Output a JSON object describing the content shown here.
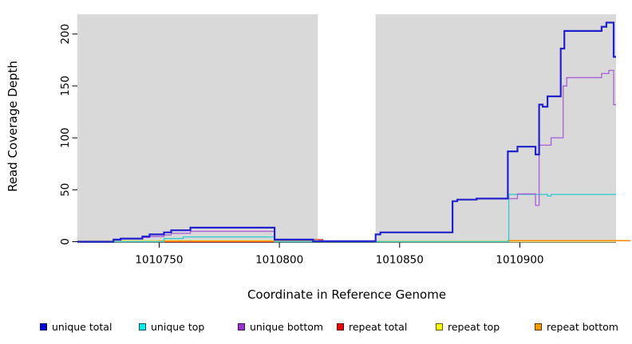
{
  "chart_data": {
    "type": "line",
    "step": true,
    "title": "",
    "xlabel": "Coordinate in Reference Genome",
    "ylabel": "Read Coverage Depth",
    "xlim": [
      1010716,
      1010940
    ],
    "ylim": [
      0,
      219
    ],
    "xticks": [
      1010750,
      1010800,
      1010850,
      1010900
    ],
    "yticks": [
      0,
      50,
      100,
      150,
      200
    ],
    "grid": false,
    "background": "#d9d9d9",
    "axis_color": "#000000",
    "masked_region": {
      "x0": 1010816,
      "x1": 1010840,
      "color": "#ffffff"
    },
    "legend_position": "bottom",
    "series": [
      {
        "name": "unique total",
        "line_color": "#2222cc",
        "width": 2.2,
        "points": [
          [
            1010716,
            0
          ],
          [
            1010731,
            2
          ],
          [
            1010734,
            3
          ],
          [
            1010743,
            5
          ],
          [
            1010746,
            7
          ],
          [
            1010752,
            9
          ],
          [
            1010755,
            11
          ],
          [
            1010763,
            13.5
          ],
          [
            1010798,
            2
          ],
          [
            1010814,
            0.5
          ],
          [
            1010840,
            7
          ],
          [
            1010842,
            9
          ],
          [
            1010872,
            39
          ],
          [
            1010874,
            40.5
          ],
          [
            1010882,
            41.5
          ],
          [
            1010895,
            87
          ],
          [
            1010899,
            91.5
          ],
          [
            1010906.5,
            84
          ],
          [
            1010908,
            132
          ],
          [
            1010909.5,
            130
          ],
          [
            1010911.5,
            140
          ],
          [
            1010917,
            186
          ],
          [
            1010918.5,
            203
          ],
          [
            1010934,
            207
          ],
          [
            1010936,
            211
          ],
          [
            1010939,
            178
          ]
        ],
        "end": 1010940
      },
      {
        "name": "unique top",
        "line_color": "#35cfcf",
        "width": 1.4,
        "points": [
          [
            1010716,
            0
          ],
          [
            1010752,
            3
          ],
          [
            1010760,
            4.5
          ],
          [
            1010798,
            0
          ],
          [
            1010895.4,
            45.5
          ],
          [
            1010911.5,
            44
          ],
          [
            1010913,
            45.5
          ]
        ],
        "end": 1010940
      },
      {
        "name": "unique bottom",
        "line_color": "#ab66d9",
        "width": 1.4,
        "points": [
          [
            1010716,
            0
          ],
          [
            1010731,
            1.5
          ],
          [
            1010734,
            2.5
          ],
          [
            1010743,
            4
          ],
          [
            1010746,
            5
          ],
          [
            1010752,
            6.5
          ],
          [
            1010755,
            8
          ],
          [
            1010763,
            10
          ],
          [
            1010798,
            1.5
          ],
          [
            1010814,
            0.3
          ],
          [
            1010840,
            7
          ],
          [
            1010842,
            9
          ],
          [
            1010872,
            39
          ],
          [
            1010874,
            40.5
          ],
          [
            1010882,
            41.5
          ],
          [
            1010899,
            46
          ],
          [
            1010906.5,
            35
          ],
          [
            1010908,
            93
          ],
          [
            1010913,
            100
          ],
          [
            1010918,
            150
          ],
          [
            1010919.5,
            158
          ],
          [
            1010934,
            162
          ],
          [
            1010937,
            165
          ],
          [
            1010939,
            132
          ]
        ],
        "end": 1010940
      },
      {
        "name": "repeat total",
        "line_color": "#e03030",
        "width": 1.4,
        "points": [
          [
            1010716,
            0
          ],
          [
            1010813,
            2
          ],
          [
            1010818,
            0.5
          ],
          [
            1010843,
            0
          ]
        ],
        "end": 1010940
      },
      {
        "name": "repeat top",
        "line_color": "#d9e68a",
        "width": 1.4,
        "points": [
          [
            1010716,
            0.8
          ],
          [
            1010730,
            1.3
          ],
          [
            1010816,
            0.4
          ],
          [
            1010840,
            0.6
          ],
          [
            1010895,
            0
          ]
        ],
        "end": 1010940
      },
      {
        "name": "repeat bottom",
        "line_color": "#ff9214",
        "width": 1.6,
        "points": [
          [
            1010716,
            0
          ],
          [
            1010750,
            0.5
          ],
          [
            1010816,
            0.2
          ],
          [
            1010840,
            0
          ],
          [
            1010895,
            1
          ]
        ],
        "end": 1010946
      }
    ],
    "draw_order": [
      3,
      4,
      5,
      1,
      2,
      0
    ],
    "legend": [
      {
        "label": "unique total",
        "color": "#0000dd"
      },
      {
        "label": "unique top",
        "color": "#00eeee"
      },
      {
        "label": "unique bottom",
        "color": "#9933cc"
      },
      {
        "label": "repeat total",
        "color": "#ee0000"
      },
      {
        "label": "repeat top",
        "color": "#ffff00"
      },
      {
        "label": "repeat bottom",
        "color": "#ff9900"
      }
    ]
  }
}
